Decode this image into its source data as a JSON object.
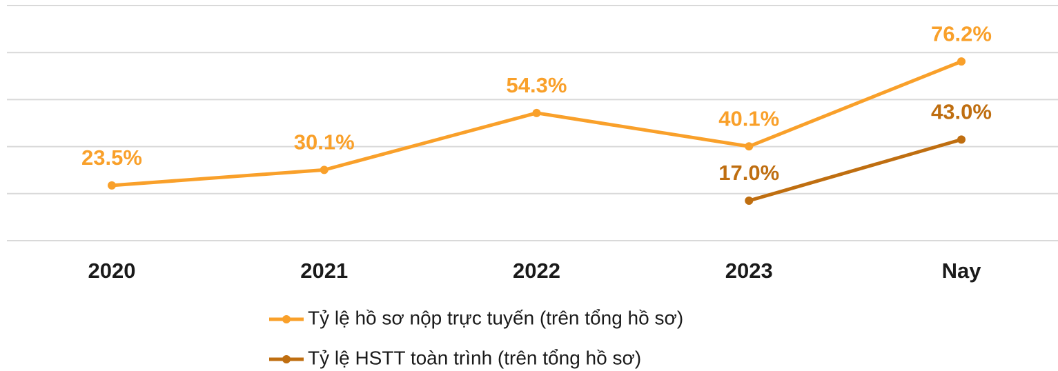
{
  "chart_data": {
    "type": "line",
    "categories": [
      "2020",
      "2021",
      "2022",
      "2023",
      "Nay"
    ],
    "series": [
      {
        "name": "Tỷ lệ hồ sơ nộp trực tuyến (trên tổng hồ sơ)",
        "color": "#f9a02a",
        "values": [
          23.5,
          30.1,
          54.3,
          40.1,
          76.2
        ],
        "value_labels": [
          "23.5%",
          "30.1%",
          "54.3%",
          "40.1%",
          "76.2%"
        ]
      },
      {
        "name": "Tỷ lệ HSTT toàn trình (trên tổng hồ sơ)",
        "color": "#bf6e10",
        "values": [
          null,
          null,
          null,
          17.0,
          43.0
        ],
        "value_labels": [
          null,
          null,
          null,
          "17.0%",
          "43.0%"
        ]
      }
    ],
    "ylim": [
      0,
      100
    ],
    "yticks": [
      0,
      20,
      40,
      60,
      80,
      100
    ],
    "grid": true
  }
}
